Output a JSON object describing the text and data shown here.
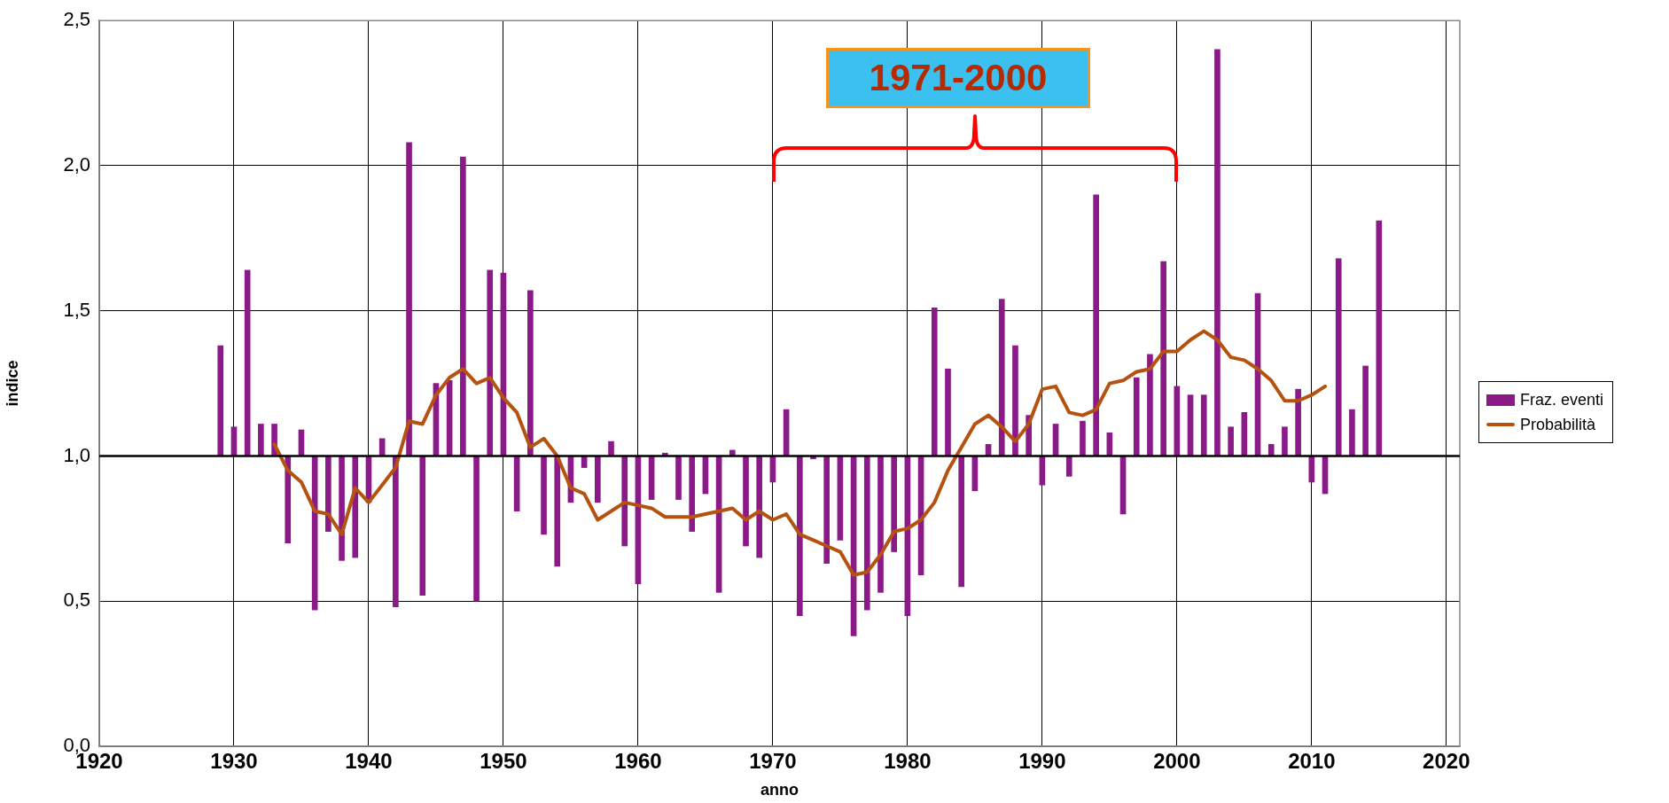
{
  "chart_data": {
    "type": "bar",
    "xlabel": "anno",
    "ylabel": "indice",
    "xlim": [
      1920,
      2021
    ],
    "xticks": [
      1920,
      1930,
      1940,
      1950,
      1960,
      1970,
      1980,
      1990,
      2000,
      2010,
      2020
    ],
    "ylim": [
      0,
      2.5
    ],
    "yticks": [
      {
        "value": 0,
        "label": "0,0"
      },
      {
        "value": 0.5,
        "label": "0,5"
      },
      {
        "value": 1,
        "label": "1,0"
      },
      {
        "value": 1.5,
        "label": "1,5"
      },
      {
        "value": 2,
        "label": "2,0"
      },
      {
        "value": 2.5,
        "label": "2,5"
      }
    ],
    "grid": true,
    "legend": "right",
    "marker": "none",
    "annotations": [
      "1971-2000"
    ],
    "ref_lines": [
      {
        "axis": "y",
        "value": 1,
        "color": "#000000"
      }
    ],
    "series": [
      {
        "name": "Fraz. eventi",
        "color": "#8b1a89",
        "x": [
          1929,
          1930,
          1931,
          1932,
          1933,
          1934,
          1935,
          1936,
          1937,
          1938,
          1939,
          1940,
          1941,
          1942,
          1943,
          1944,
          1945,
          1946,
          1947,
          1948,
          1949,
          1950,
          1951,
          1952,
          1953,
          1954,
          1955,
          1956,
          1957,
          1958,
          1959,
          1960,
          1961,
          1962,
          1963,
          1964,
          1965,
          1966,
          1967,
          1968,
          1969,
          1970,
          1971,
          1972,
          1973,
          1974,
          1975,
          1976,
          1977,
          1978,
          1979,
          1980,
          1981,
          1982,
          1983,
          1984,
          1985,
          1986,
          1987,
          1988,
          1989,
          1990,
          1991,
          1992,
          1993,
          1994,
          1995,
          1996,
          1997,
          1998,
          1999,
          2000,
          2001,
          2002,
          2003,
          2004,
          2005,
          2006,
          2007,
          2008,
          2009,
          2010,
          2011,
          2012,
          2013,
          2014,
          2015
        ],
        "base": [
          1,
          1,
          1,
          1,
          1,
          1,
          1,
          1,
          1,
          1,
          1,
          1,
          1,
          1,
          1,
          1,
          1,
          1,
          1,
          1,
          1,
          1,
          1,
          1,
          1,
          1,
          1,
          1,
          1,
          1,
          1,
          1,
          1,
          1,
          1,
          1,
          1,
          1,
          1,
          1,
          1,
          1,
          1,
          1,
          1,
          1,
          1,
          1,
          1,
          1,
          1,
          1,
          1,
          1,
          1,
          1,
          1,
          1,
          1,
          1,
          1,
          1,
          1,
          1,
          1,
          1,
          1,
          1,
          1,
          1,
          1,
          1,
          1,
          1,
          1,
          1,
          1,
          1,
          1,
          1,
          1,
          1,
          1,
          1,
          1,
          1,
          1
        ],
        "values": [
          0.38,
          0.1,
          0.64,
          0.11,
          0.11,
          -0.3,
          0.09,
          -0.53,
          -0.26,
          -0.36,
          -0.35,
          -0.16,
          0.06,
          -0.52,
          1.08,
          -0.48,
          0.25,
          0.26,
          1.03,
          -0.5,
          0.64,
          0.63,
          -0.19,
          0.57,
          -0.27,
          -0.38,
          -0.16,
          -0.04,
          -0.16,
          0.05,
          -0.31,
          -0.44,
          -0.15,
          0.01,
          -0.15,
          -0.26,
          -0.13,
          -0.47,
          0.02,
          -0.31,
          -0.35,
          -0.09,
          0.16,
          -0.55,
          -0.01,
          -0.37,
          -0.29,
          -0.62,
          -0.53,
          -0.47,
          -0.33,
          -0.55,
          -0.41,
          0.51,
          0.3,
          -0.45,
          -0.12,
          0.04,
          0.54,
          0.38,
          0.14,
          -0.1,
          0.11,
          -0.07,
          0.12,
          0.9,
          0.08,
          -0.2,
          0.27,
          0.35,
          0.67,
          0.24,
          0.21,
          0.21,
          1.4,
          0.1,
          0.15,
          0.56,
          0.04,
          0.1,
          0.23,
          -0.09,
          -0.13,
          0.68,
          0.16,
          0.31,
          0.81
        ]
      },
      {
        "name": "Probabilità",
        "type": "line",
        "color": "#b5520f",
        "x": [
          1933,
          1934,
          1935,
          1936,
          1937,
          1938,
          1939,
          1940,
          1941,
          1942,
          1943,
          1944,
          1945,
          1946,
          1947,
          1948,
          1949,
          1950,
          1951,
          1952,
          1953,
          1954,
          1955,
          1956,
          1957,
          1958,
          1959,
          1960,
          1961,
          1962,
          1963,
          1964,
          1965,
          1966,
          1967,
          1968,
          1969,
          1970,
          1971,
          1972,
          1973,
          1974,
          1975,
          1976,
          1977,
          1978,
          1979,
          1980,
          1981,
          1982,
          1983,
          1984,
          1985,
          1986,
          1987,
          1988,
          1989,
          1990,
          1991,
          1992,
          1993,
          1994,
          1995,
          1996,
          1997,
          1998,
          1999,
          2000,
          2001,
          2002,
          2003,
          2004,
          2005,
          2006,
          2007,
          2008,
          2009,
          2010,
          2011
        ],
        "values": [
          1.04,
          0.95,
          0.91,
          0.81,
          0.8,
          0.73,
          0.89,
          0.84,
          0.9,
          0.96,
          1.12,
          1.11,
          1.21,
          1.27,
          1.3,
          1.25,
          1.27,
          1.2,
          1.15,
          1.03,
          1.06,
          1.0,
          0.89,
          0.87,
          0.78,
          0.81,
          0.84,
          0.83,
          0.82,
          0.79,
          0.79,
          0.79,
          0.8,
          0.81,
          0.82,
          0.78,
          0.81,
          0.78,
          0.8,
          0.73,
          0.71,
          0.69,
          0.67,
          0.59,
          0.6,
          0.66,
          0.74,
          0.75,
          0.78,
          0.84,
          0.95,
          1.03,
          1.11,
          1.14,
          1.1,
          1.05,
          1.11,
          1.23,
          1.24,
          1.15,
          1.14,
          1.16,
          1.25,
          1.26,
          1.29,
          1.3,
          1.36,
          1.36,
          1.4,
          1.43,
          1.4,
          1.34,
          1.33,
          1.3,
          1.26,
          1.19,
          1.19,
          1.21,
          1.24
        ]
      }
    ]
  }
}
